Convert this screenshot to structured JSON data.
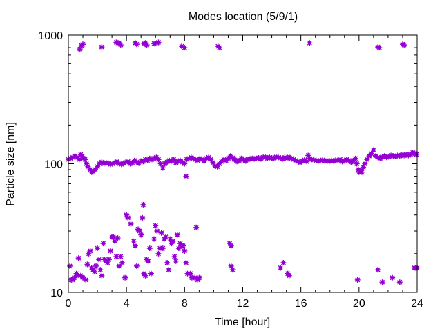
{
  "chart_data": {
    "type": "scatter",
    "title": "Modes location (5/9/1)",
    "xlabel": "Time [hour]",
    "ylabel": "Particle size [nm]",
    "xlim": [
      0,
      24
    ],
    "ylim": [
      10,
      1000
    ],
    "y_scale": "log",
    "x_ticks": [
      0,
      4,
      8,
      12,
      16,
      20,
      24
    ],
    "x_tick_labels": [
      "0",
      "4",
      "8",
      "12",
      "16",
      "20",
      "24"
    ],
    "y_ticks": [
      10,
      100,
      1000
    ],
    "y_tick_labels": [
      "10",
      "100",
      "1000"
    ],
    "grid": false,
    "legend": "none",
    "marker_color": "#9400d3",
    "series": [
      {
        "points": [
          [
            0.8,
            780
          ],
          [
            0.9,
            830
          ],
          [
            1.0,
            850
          ],
          [
            2.3,
            810
          ],
          [
            3.3,
            880
          ],
          [
            3.5,
            870
          ],
          [
            3.6,
            840
          ],
          [
            4.6,
            870
          ],
          [
            4.7,
            850
          ],
          [
            5.2,
            860
          ],
          [
            5.3,
            870
          ],
          [
            5.4,
            840
          ],
          [
            5.9,
            860
          ],
          [
            6.1,
            870
          ],
          [
            6.2,
            880
          ],
          [
            7.8,
            820
          ],
          [
            8.0,
            800
          ],
          [
            10.3,
            820
          ],
          [
            10.4,
            800
          ],
          [
            16.6,
            870
          ],
          [
            21.3,
            810
          ],
          [
            21.4,
            800
          ],
          [
            23.0,
            850
          ],
          [
            23.1,
            840
          ],
          [
            0.0,
            108
          ],
          [
            0.15,
            110
          ],
          [
            0.3,
            112
          ],
          [
            0.45,
            115
          ],
          [
            0.6,
            112
          ],
          [
            0.75,
            108
          ],
          [
            0.85,
            118
          ],
          [
            0.95,
            114
          ],
          [
            1.05,
            110
          ],
          [
            1.15,
            108
          ],
          [
            1.25,
            100
          ],
          [
            1.35,
            95
          ],
          [
            1.5,
            90
          ],
          [
            1.6,
            86
          ],
          [
            1.7,
            87
          ],
          [
            1.85,
            90
          ],
          [
            2.0,
            95
          ],
          [
            2.15,
            100
          ],
          [
            2.3,
            103
          ],
          [
            2.45,
            100
          ],
          [
            2.6,
            102
          ],
          [
            2.75,
            101
          ],
          [
            2.9,
            99
          ],
          [
            3.05,
            100
          ],
          [
            3.2,
            102
          ],
          [
            3.35,
            104
          ],
          [
            3.5,
            100
          ],
          [
            3.65,
            99
          ],
          [
            3.8,
            101
          ],
          [
            3.95,
            103
          ],
          [
            4.1,
            104
          ],
          [
            4.25,
            100
          ],
          [
            4.4,
            102
          ],
          [
            4.55,
            106
          ],
          [
            4.7,
            103
          ],
          [
            4.85,
            101
          ],
          [
            5.0,
            105
          ],
          [
            5.15,
            104
          ],
          [
            5.3,
            108
          ],
          [
            5.45,
            106
          ],
          [
            5.6,
            110
          ],
          [
            5.75,
            108
          ],
          [
            5.9,
            110
          ],
          [
            6.05,
            112
          ],
          [
            6.2,
            108
          ],
          [
            6.35,
            100
          ],
          [
            6.5,
            93
          ],
          [
            6.65,
            100
          ],
          [
            6.8,
            103
          ],
          [
            6.95,
            106
          ],
          [
            7.1,
            105
          ],
          [
            7.25,
            108
          ],
          [
            7.4,
            102
          ],
          [
            7.55,
            104
          ],
          [
            7.7,
            106
          ],
          [
            7.85,
            103
          ],
          [
            8.0,
            100
          ],
          [
            8.15,
            108
          ],
          [
            8.3,
            110
          ],
          [
            8.45,
            112
          ],
          [
            8.6,
            110
          ],
          [
            8.75,
            108
          ],
          [
            8.9,
            106
          ],
          [
            9.05,
            110
          ],
          [
            9.2,
            108
          ],
          [
            9.35,
            105
          ],
          [
            9.5,
            110
          ],
          [
            9.65,
            112
          ],
          [
            9.8,
            108
          ],
          [
            9.95,
            102
          ],
          [
            10.1,
            96
          ],
          [
            10.25,
            95
          ],
          [
            10.4,
            100
          ],
          [
            10.55,
            104
          ],
          [
            10.7,
            108
          ],
          [
            10.85,
            106
          ],
          [
            11.0,
            110
          ],
          [
            11.15,
            115
          ],
          [
            11.3,
            111
          ],
          [
            11.45,
            107
          ],
          [
            11.6,
            104
          ],
          [
            11.75,
            106
          ],
          [
            11.9,
            110
          ],
          [
            12.05,
            107
          ],
          [
            12.2,
            105
          ],
          [
            12.35,
            108
          ],
          [
            12.5,
            109
          ],
          [
            12.65,
            110
          ],
          [
            12.8,
            109
          ],
          [
            12.95,
            110
          ],
          [
            13.1,
            111
          ],
          [
            13.25,
            109
          ],
          [
            13.4,
            112
          ],
          [
            13.55,
            113
          ],
          [
            13.7,
            110
          ],
          [
            13.85,
            112
          ],
          [
            14.0,
            111
          ],
          [
            14.15,
            110
          ],
          [
            14.3,
            113
          ],
          [
            14.45,
            112
          ],
          [
            14.6,
            111
          ],
          [
            14.75,
            109
          ],
          [
            14.9,
            112
          ],
          [
            15.05,
            110
          ],
          [
            15.2,
            113
          ],
          [
            15.35,
            110
          ],
          [
            15.5,
            108
          ],
          [
            15.65,
            106
          ],
          [
            15.8,
            104
          ],
          [
            15.95,
            102
          ],
          [
            16.1,
            105
          ],
          [
            16.25,
            107
          ],
          [
            16.4,
            104
          ],
          [
            16.5,
            116
          ],
          [
            16.6,
            110
          ],
          [
            16.75,
            108
          ],
          [
            16.9,
            107
          ],
          [
            17.05,
            106
          ],
          [
            17.2,
            105
          ],
          [
            17.35,
            106
          ],
          [
            17.5,
            107
          ],
          [
            17.65,
            105
          ],
          [
            17.8,
            106
          ],
          [
            17.95,
            104
          ],
          [
            18.1,
            106
          ],
          [
            18.25,
            105
          ],
          [
            18.4,
            107
          ],
          [
            18.55,
            106
          ],
          [
            18.7,
            108
          ],
          [
            18.85,
            104
          ],
          [
            19.0,
            106
          ],
          [
            19.15,
            108
          ],
          [
            19.3,
            106
          ],
          [
            19.45,
            103
          ],
          [
            19.6,
            106
          ],
          [
            19.75,
            110
          ],
          [
            19.85,
            100
          ],
          [
            19.95,
            90
          ],
          [
            20.0,
            86
          ],
          [
            20.1,
            88
          ],
          [
            20.2,
            86
          ],
          [
            20.3,
            94
          ],
          [
            20.4,
            100
          ],
          [
            20.55,
            108
          ],
          [
            20.7,
            115
          ],
          [
            20.85,
            120
          ],
          [
            21.0,
            128
          ],
          [
            21.15,
            115
          ],
          [
            21.3,
            112
          ],
          [
            21.45,
            110
          ],
          [
            21.6,
            113
          ],
          [
            21.75,
            115
          ],
          [
            21.9,
            112
          ],
          [
            22.05,
            114
          ],
          [
            22.2,
            116
          ],
          [
            22.35,
            115
          ],
          [
            22.5,
            114
          ],
          [
            22.65,
            116
          ],
          [
            22.8,
            115
          ],
          [
            22.95,
            117
          ],
          [
            23.1,
            116
          ],
          [
            23.25,
            118
          ],
          [
            23.4,
            116
          ],
          [
            23.55,
            118
          ],
          [
            23.7,
            122
          ],
          [
            23.85,
            120
          ],
          [
            23.95,
            118
          ],
          [
            8.1,
            80
          ],
          [
            0.1,
            16
          ],
          [
            0.2,
            12.5
          ],
          [
            0.3,
            12.5
          ],
          [
            0.4,
            13
          ],
          [
            0.55,
            14
          ],
          [
            0.6,
            13.5
          ],
          [
            0.7,
            18.5
          ],
          [
            0.85,
            13.5
          ],
          [
            1.0,
            13
          ],
          [
            1.2,
            12.5
          ],
          [
            1.3,
            16.5
          ],
          [
            1.4,
            20
          ],
          [
            1.5,
            21
          ],
          [
            1.6,
            15.5
          ],
          [
            1.7,
            15
          ],
          [
            1.8,
            14.5
          ],
          [
            1.9,
            16
          ],
          [
            2.0,
            22
          ],
          [
            2.1,
            18
          ],
          [
            2.2,
            15
          ],
          [
            2.3,
            13.5
          ],
          [
            2.4,
            24
          ],
          [
            2.5,
            18
          ],
          [
            2.6,
            17.5
          ],
          [
            2.7,
            17
          ],
          [
            2.8,
            18
          ],
          [
            2.9,
            21
          ],
          [
            3.0,
            27
          ],
          [
            3.1,
            27
          ],
          [
            3.2,
            25
          ],
          [
            3.3,
            19
          ],
          [
            3.4,
            26.5
          ],
          [
            3.5,
            16
          ],
          [
            3.6,
            19
          ],
          [
            3.7,
            17
          ],
          [
            3.9,
            13
          ],
          [
            4.0,
            40
          ],
          [
            4.1,
            38
          ],
          [
            4.3,
            34
          ],
          [
            4.5,
            25
          ],
          [
            4.6,
            23
          ],
          [
            4.7,
            16
          ],
          [
            4.8,
            31
          ],
          [
            4.9,
            30
          ],
          [
            5.0,
            28
          ],
          [
            5.1,
            38
          ],
          [
            5.15,
            48
          ],
          [
            5.2,
            14
          ],
          [
            5.3,
            13.5
          ],
          [
            5.4,
            18
          ],
          [
            5.5,
            17.5
          ],
          [
            5.6,
            22
          ],
          [
            5.7,
            14
          ],
          [
            5.9,
            26
          ],
          [
            6.0,
            33
          ],
          [
            6.1,
            30
          ],
          [
            6.2,
            20
          ],
          [
            6.3,
            22
          ],
          [
            6.4,
            29
          ],
          [
            6.5,
            22
          ],
          [
            6.6,
            26
          ],
          [
            6.7,
            27
          ],
          [
            6.8,
            17
          ],
          [
            6.9,
            15
          ],
          [
            7.0,
            26
          ],
          [
            7.1,
            24
          ],
          [
            7.2,
            25
          ],
          [
            7.3,
            19
          ],
          [
            7.4,
            17.5
          ],
          [
            7.5,
            28
          ],
          [
            7.6,
            22
          ],
          [
            7.7,
            24
          ],
          [
            7.8,
            23
          ],
          [
            7.9,
            23
          ],
          [
            8.0,
            21
          ],
          [
            8.1,
            17
          ],
          [
            8.2,
            14
          ],
          [
            8.4,
            14
          ],
          [
            8.5,
            13
          ],
          [
            8.7,
            13
          ],
          [
            8.8,
            32
          ],
          [
            8.9,
            12.5
          ],
          [
            9.0,
            13
          ],
          [
            11.1,
            24
          ],
          [
            11.2,
            23
          ],
          [
            11.2,
            16
          ],
          [
            11.3,
            15
          ],
          [
            14.6,
            15.5
          ],
          [
            14.8,
            17
          ],
          [
            15.1,
            14
          ],
          [
            15.2,
            13.5
          ],
          [
            19.9,
            12.5
          ],
          [
            21.3,
            15
          ],
          [
            21.6,
            12
          ],
          [
            22.3,
            13
          ],
          [
            22.8,
            12
          ],
          [
            23.8,
            15.5
          ],
          [
            23.9,
            15.5
          ],
          [
            24.0,
            15.5
          ]
        ]
      }
    ]
  }
}
